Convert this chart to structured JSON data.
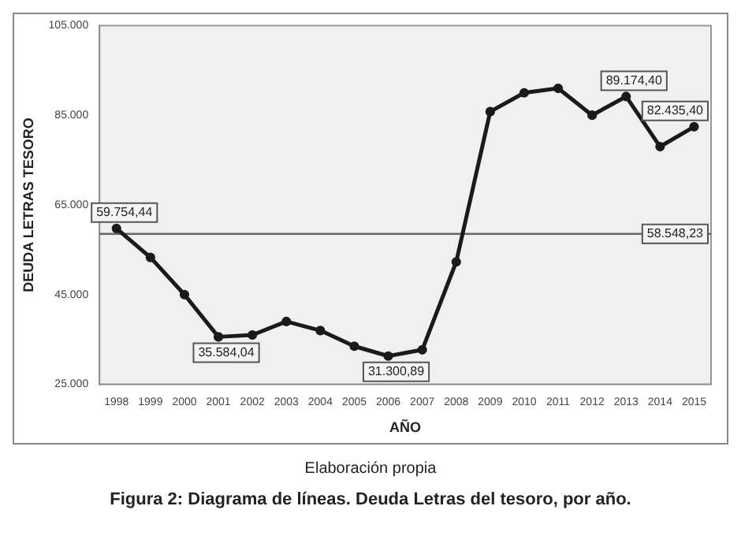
{
  "chart_data": {
    "type": "line",
    "xlabel": "AÑO",
    "ylabel": "DEUDA LETRAS TESORO",
    "categories": [
      "1998",
      "1999",
      "2000",
      "2001",
      "2002",
      "2003",
      "2004",
      "2005",
      "2006",
      "2007",
      "2008",
      "2009",
      "2010",
      "2011",
      "2012",
      "2013",
      "2014",
      "2015"
    ],
    "series": [
      {
        "color": "#1a1a1a",
        "values": [
          59754.44,
          53300,
          45000,
          35584.04,
          36000,
          39000,
          37000,
          33500,
          31300.89,
          32700,
          52300,
          85800,
          90000,
          91000,
          85000,
          89174.4,
          78000,
          82435.4
        ],
        "value_labels": [
          "59.754,44",
          null,
          null,
          "35.584,04",
          null,
          null,
          null,
          null,
          "31.300,89",
          null,
          null,
          null,
          null,
          null,
          null,
          "89.174,40",
          null,
          "82.435,40"
        ]
      }
    ],
    "ylim": [
      25000,
      105000
    ],
    "yticks": [
      {
        "value": 25000,
        "label": "25.000"
      },
      {
        "value": 45000,
        "label": "45.000"
      },
      {
        "value": 65000,
        "label": "65.000"
      },
      {
        "value": 85000,
        "label": "85.000"
      },
      {
        "value": 105000,
        "label": "105.000"
      }
    ],
    "ref_lines": [
      {
        "axis": "y",
        "value": 58548.23,
        "label": "58.548,23",
        "color": "#666666"
      }
    ],
    "grid": false,
    "legend": false,
    "marker": "circle",
    "line_style": "solid",
    "annotations": [
      "Elaboración propia",
      "Figura 2: Diagrama de líneas. Deuda Letras del tesoro, por año."
    ]
  }
}
